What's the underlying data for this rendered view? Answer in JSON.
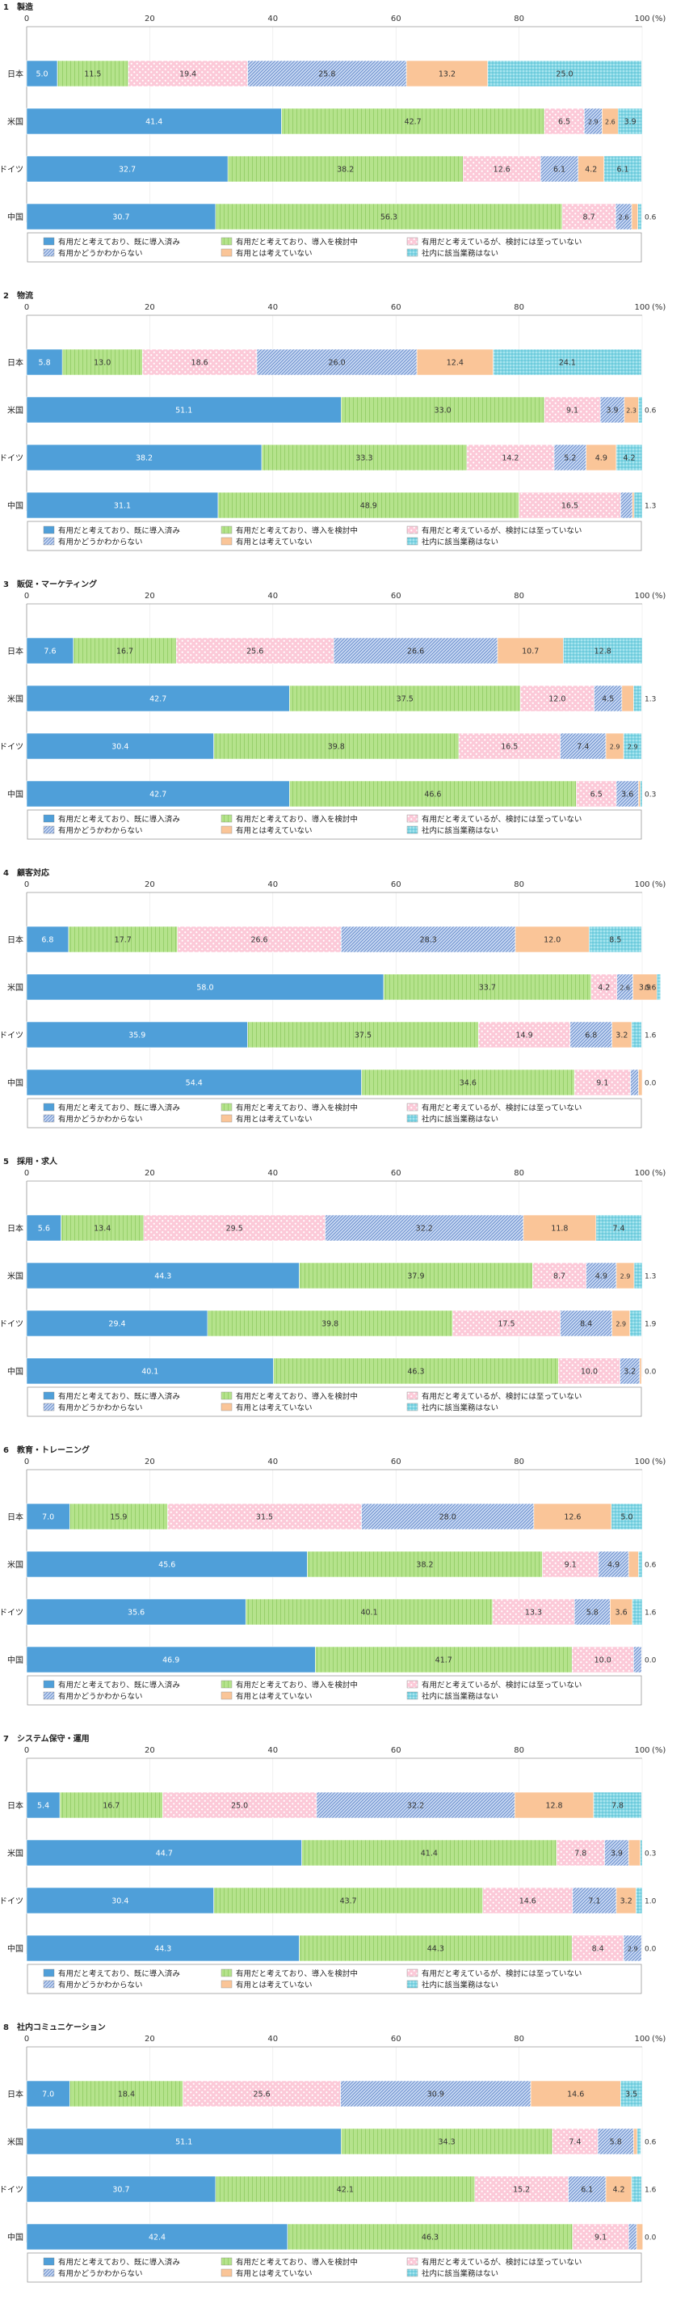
{
  "axis": {
    "ticks": [
      "0",
      "20",
      "40",
      "60",
      "80",
      "100"
    ],
    "unit": "(%)",
    "xlim": [
      0,
      100
    ]
  },
  "legend": {
    "items": [
      "有用だと考えており、既に導入済み",
      "有用だと考えており、導入を検討中",
      "有用だと考えているが、検討には至っていない",
      "有用かどうかわからない",
      "有用とは考えていない",
      "社内に該当業務はない"
    ]
  },
  "series_colors": [
    "#4f9fd9",
    "#b5e38c",
    "#fcc9d8",
    "#c9d9f3",
    "#fac598",
    "#a8e5ef"
  ],
  "countries": [
    "日本",
    "米国",
    "ドイツ",
    "中国"
  ],
  "chart_data": [
    {
      "type": "bar",
      "orientation": "horizontal",
      "stacked": true,
      "title": "1　製造",
      "categories": [
        "日本",
        "米国",
        "ドイツ",
        "中国"
      ],
      "series": [
        {
          "name": "有用だと考えており、既に導入済み",
          "values": [
            5.0,
            41.4,
            32.7,
            30.7
          ]
        },
        {
          "name": "有用だと考えており、導入を検討中",
          "values": [
            11.5,
            42.7,
            38.2,
            56.3
          ]
        },
        {
          "name": "有用だと考えているが、検討には至っていない",
          "values": [
            19.4,
            6.5,
            12.6,
            8.7
          ]
        },
        {
          "name": "有用かどうかわからない",
          "values": [
            25.8,
            2.9,
            6.1,
            2.6
          ]
        },
        {
          "name": "有用とは考えていない",
          "values": [
            13.2,
            2.6,
            4.2,
            1.0
          ]
        },
        {
          "name": "社内に該当業務はない",
          "values": [
            25.0,
            3.9,
            6.1,
            0.6
          ]
        }
      ],
      "xlim": [
        0,
        100
      ]
    },
    {
      "type": "bar",
      "orientation": "horizontal",
      "stacked": true,
      "title": "2　物流",
      "categories": [
        "日本",
        "米国",
        "ドイツ",
        "中国"
      ],
      "series": [
        {
          "name": "有用だと考えており、既に導入済み",
          "values": [
            5.8,
            51.1,
            38.2,
            31.1
          ]
        },
        {
          "name": "有用だと考えており、導入を検討中",
          "values": [
            13.0,
            33.0,
            33.3,
            48.9
          ]
        },
        {
          "name": "有用だと考えているが、検討には至っていない",
          "values": [
            18.6,
            9.1,
            14.2,
            16.5
          ]
        },
        {
          "name": "有用かどうかわからない",
          "values": [
            26.0,
            3.9,
            5.2,
            1.9
          ]
        },
        {
          "name": "有用とは考えていない",
          "values": [
            12.4,
            2.3,
            4.9,
            0.3
          ]
        },
        {
          "name": "社内に該当業務はない",
          "values": [
            24.1,
            0.6,
            4.2,
            1.3
          ]
        }
      ],
      "xlim": [
        0,
        100
      ]
    },
    {
      "type": "bar",
      "orientation": "horizontal",
      "stacked": true,
      "title": "3　販促・マーケティング",
      "categories": [
        "日本",
        "米国",
        "ドイツ",
        "中国"
      ],
      "series": [
        {
          "name": "有用だと考えており、既に導入済み",
          "values": [
            7.6,
            42.7,
            30.4,
            42.7
          ]
        },
        {
          "name": "有用だと考えており、導入を検討中",
          "values": [
            16.7,
            37.5,
            39.8,
            46.6
          ]
        },
        {
          "name": "有用だと考えているが、検討には至っていない",
          "values": [
            25.6,
            12.0,
            16.5,
            6.5
          ]
        },
        {
          "name": "有用かどうかわからない",
          "values": [
            26.6,
            4.5,
            7.4,
            3.6
          ]
        },
        {
          "name": "有用とは考えていない",
          "values": [
            10.7,
            1.9,
            2.9,
            0.3
          ]
        },
        {
          "name": "社内に該当業務はない",
          "values": [
            12.8,
            1.3,
            2.9,
            0.3
          ]
        }
      ],
      "xlim": [
        0,
        100
      ]
    },
    {
      "type": "bar",
      "orientation": "horizontal",
      "stacked": true,
      "title": "4　顧客対応",
      "categories": [
        "日本",
        "米国",
        "ドイツ",
        "中国"
      ],
      "series": [
        {
          "name": "有用だと考えており、既に導入済み",
          "values": [
            6.8,
            58.0,
            35.9,
            54.4
          ]
        },
        {
          "name": "有用だと考えており、導入を検討中",
          "values": [
            17.7,
            33.7,
            37.5,
            34.6
          ]
        },
        {
          "name": "有用だと考えているが、検討には至っていない",
          "values": [
            26.6,
            4.2,
            14.9,
            9.1
          ]
        },
        {
          "name": "有用かどうかわからない",
          "values": [
            28.3,
            2.6,
            6.8,
            1.3
          ]
        },
        {
          "name": "有用とは考えていない",
          "values": [
            12.0,
            3.9,
            3.2,
            0.6
          ]
        },
        {
          "name": "社内に該当業務はない",
          "values": [
            8.5,
            0.6,
            1.6,
            0.0
          ]
        }
      ],
      "xlim": [
        0,
        100
      ]
    },
    {
      "type": "bar",
      "orientation": "horizontal",
      "stacked": true,
      "title": "5　採用・求人",
      "categories": [
        "日本",
        "米国",
        "ドイツ",
        "中国"
      ],
      "series": [
        {
          "name": "有用だと考えており、既に導入済み",
          "values": [
            5.6,
            44.3,
            29.4,
            40.1
          ]
        },
        {
          "name": "有用だと考えており、導入を検討中",
          "values": [
            13.4,
            37.9,
            39.8,
            46.3
          ]
        },
        {
          "name": "有用だと考えているが、検討には至っていない",
          "values": [
            29.5,
            8.7,
            17.5,
            10.0
          ]
        },
        {
          "name": "有用かどうかわからない",
          "values": [
            32.2,
            4.9,
            8.4,
            3.2
          ]
        },
        {
          "name": "有用とは考えていない",
          "values": [
            11.8,
            2.9,
            2.9,
            0.3
          ]
        },
        {
          "name": "社内に該当業務はない",
          "values": [
            7.4,
            1.3,
            1.9,
            0.0
          ]
        }
      ],
      "xlim": [
        0,
        100
      ]
    },
    {
      "type": "bar",
      "orientation": "horizontal",
      "stacked": true,
      "title": "6　教育・トレーニング",
      "categories": [
        "日本",
        "米国",
        "ドイツ",
        "中国"
      ],
      "series": [
        {
          "name": "有用だと考えており、既に導入済み",
          "values": [
            7.0,
            45.6,
            35.6,
            46.9
          ]
        },
        {
          "name": "有用だと考えており、導入を検討中",
          "values": [
            15.9,
            38.2,
            40.1,
            41.7
          ]
        },
        {
          "name": "有用だと考えているが、検討には至っていない",
          "values": [
            31.5,
            9.1,
            13.3,
            10.0
          ]
        },
        {
          "name": "有用かどうかわからない",
          "values": [
            28.0,
            4.9,
            5.8,
            1.3
          ]
        },
        {
          "name": "有用とは考えていない",
          "values": [
            12.6,
            1.6,
            3.6,
            0.0
          ]
        },
        {
          "name": "社内に該当業務はない",
          "values": [
            5.0,
            0.6,
            1.6,
            0.0
          ]
        }
      ],
      "xlim": [
        0,
        100
      ]
    },
    {
      "type": "bar",
      "orientation": "horizontal",
      "stacked": true,
      "title": "7　システム保守・運用",
      "categories": [
        "日本",
        "米国",
        "ドイツ",
        "中国"
      ],
      "series": [
        {
          "name": "有用だと考えており、既に導入済み",
          "values": [
            5.4,
            44.7,
            30.4,
            44.3
          ]
        },
        {
          "name": "有用だと考えており、導入を検討中",
          "values": [
            16.7,
            41.4,
            43.7,
            44.3
          ]
        },
        {
          "name": "有用だと考えているが、検討には至っていない",
          "values": [
            25.0,
            7.8,
            14.6,
            8.4
          ]
        },
        {
          "name": "有用かどうかわからない",
          "values": [
            32.2,
            3.9,
            7.1,
            2.9
          ]
        },
        {
          "name": "有用とは考えていない",
          "values": [
            12.8,
            1.9,
            3.2,
            0.0
          ]
        },
        {
          "name": "社内に該当業務はない",
          "values": [
            7.8,
            0.3,
            1.0,
            0.0
          ]
        }
      ],
      "xlim": [
        0,
        100
      ]
    },
    {
      "type": "bar",
      "orientation": "horizontal",
      "stacked": true,
      "title": "8　社内コミュニケーション",
      "categories": [
        "日本",
        "米国",
        "ドイツ",
        "中国"
      ],
      "series": [
        {
          "name": "有用だと考えており、既に導入済み",
          "values": [
            7.0,
            51.1,
            30.7,
            42.4
          ]
        },
        {
          "name": "有用だと考えており、導入を検討中",
          "values": [
            18.4,
            34.3,
            42.1,
            46.3
          ]
        },
        {
          "name": "有用だと考えているが、検討には至っていない",
          "values": [
            25.6,
            7.4,
            15.2,
            9.1
          ]
        },
        {
          "name": "有用かどうかわからない",
          "values": [
            30.9,
            5.8,
            6.1,
            1.3
          ]
        },
        {
          "name": "有用とは考えていない",
          "values": [
            14.6,
            0.6,
            4.2,
            1.0
          ]
        },
        {
          "name": "社内に該当業務はない",
          "values": [
            3.5,
            0.6,
            1.6,
            0.0
          ]
        }
      ],
      "xlim": [
        0,
        100
      ]
    }
  ]
}
